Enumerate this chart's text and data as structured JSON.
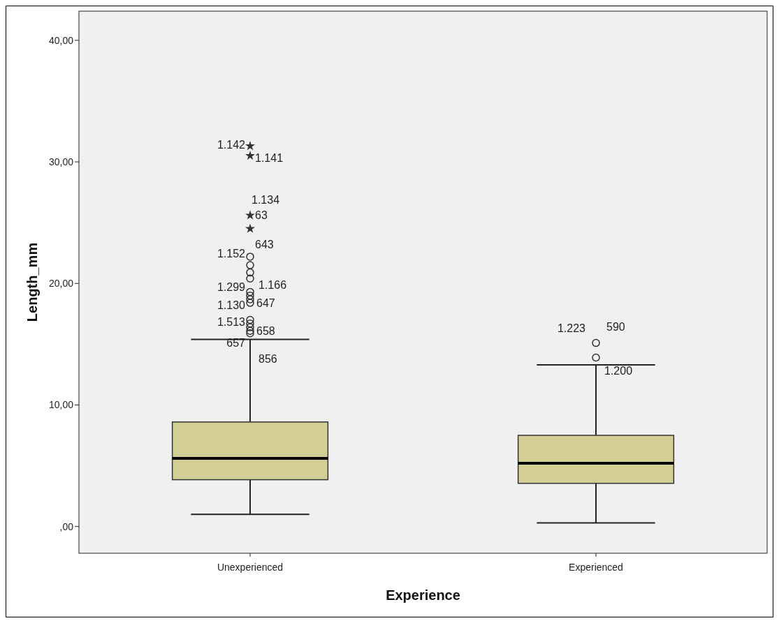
{
  "chart_data": {
    "type": "box",
    "xlabel": "Experience",
    "ylabel": "Length_mm",
    "categories": [
      "Unexperienced",
      "Experienced"
    ],
    "color": "#d3cd96",
    "ylim": [
      -2.2,
      42.4
    ],
    "yticks": [
      {
        "value": 0,
        "label": ",00"
      },
      {
        "value": 10,
        "label": "10,00"
      },
      {
        "value": 20,
        "label": "20,00"
      },
      {
        "value": 30,
        "label": "30,00"
      },
      {
        "value": 40,
        "label": "40,00"
      }
    ],
    "boxes": [
      {
        "low": 1.0,
        "q1": 3.85,
        "median": 5.6,
        "q3": 8.6,
        "high": 15.4,
        "outliers": [
          31.3,
          30.5,
          25.6,
          24.5,
          22.2,
          21.5,
          20.9,
          20.4,
          19.3,
          19.0,
          18.7,
          18.4,
          17.0,
          16.7,
          16.4,
          16.1,
          15.9
        ]
      },
      {
        "low": 0.3,
        "q1": 3.55,
        "median": 5.2,
        "q3": 7.5,
        "high": 13.3,
        "outliers": [
          15.1,
          13.9
        ]
      }
    ],
    "annotations": [
      "1.142",
      "1.141",
      "1.134",
      "63",
      "643",
      "1.152",
      "1.299",
      "1.166",
      "1.130",
      "647",
      "1.513",
      "658",
      "657",
      "856",
      "1.223",
      "590",
      "1.200"
    ]
  }
}
